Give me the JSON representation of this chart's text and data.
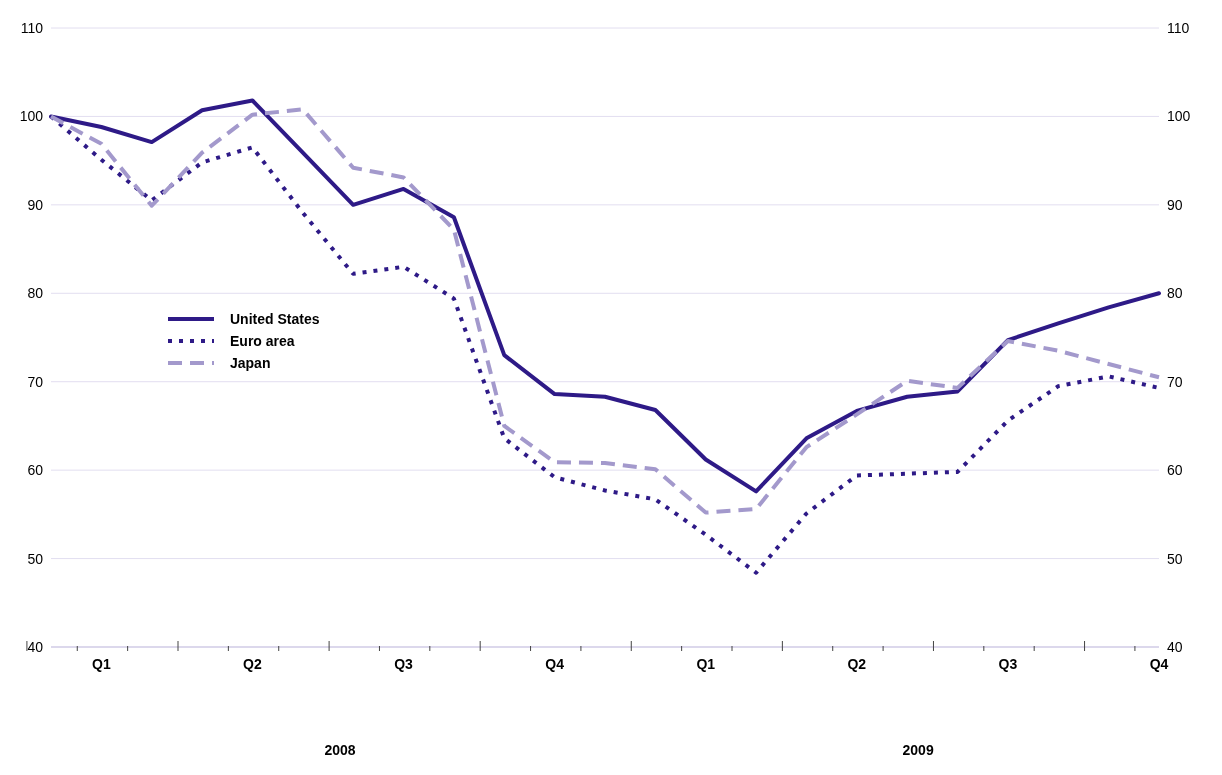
{
  "chart_data": {
    "type": "line",
    "categories": [
      null,
      "Q1",
      null,
      null,
      "Q2",
      null,
      null,
      "Q3",
      null,
      null,
      "Q4",
      null,
      null,
      "Q1",
      null,
      null,
      "Q2",
      null,
      null,
      "Q3",
      null,
      null,
      "Q4"
    ],
    "series": [
      {
        "name": "United States",
        "color": "#2e1a87",
        "line_style": "solid",
        "values": [
          100,
          98.8,
          97.1,
          100.7,
          101.8,
          95.9,
          90.0,
          91.8,
          88.6,
          73.0,
          68.6,
          68.3,
          66.8,
          61.2,
          57.6,
          63.6,
          66.7,
          68.3,
          68.9,
          74.7,
          76.6,
          78.4,
          80.0
        ]
      },
      {
        "name": "Euro area",
        "color": "#2e1a87",
        "line_style": "dotted",
        "values": [
          100,
          95.1,
          90.5,
          94.8,
          96.5,
          89.1,
          82.2,
          83.0,
          79.4,
          63.6,
          59.2,
          57.7,
          56.7,
          52.7,
          48.4,
          55.1,
          59.4,
          59.6,
          59.8,
          65.6,
          69.5,
          70.6,
          69.3
        ]
      },
      {
        "name": "Japan",
        "color": "#a399cc",
        "line_style": "dashed",
        "values": [
          100,
          96.9,
          89.9,
          95.9,
          100.2,
          100.8,
          94.2,
          93.1,
          87.2,
          65.0,
          60.9,
          60.8,
          60.1,
          55.2,
          55.6,
          62.6,
          66.3,
          70.1,
          69.3,
          74.6,
          73.5,
          72.0,
          70.5
        ]
      }
    ],
    "ylim": [
      40,
      110
    ],
    "yticks": [
      40,
      50,
      60,
      70,
      80,
      90,
      100,
      110
    ],
    "y2lim": [
      40,
      110
    ],
    "y2ticks": [
      40,
      50,
      60,
      70,
      80,
      90,
      100,
      110
    ],
    "annotations": [
      "2008",
      "2009"
    ],
    "grid": "y",
    "legend": "left",
    "marker": "none"
  }
}
